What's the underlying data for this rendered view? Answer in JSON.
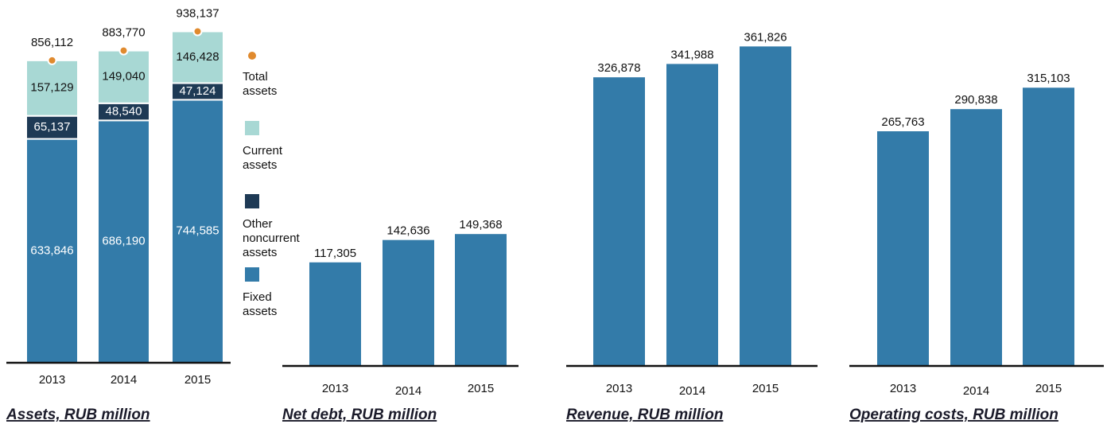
{
  "chart_data": [
    {
      "type": "stacked_bar",
      "title": "Assets, RUB million",
      "categories": [
        "2013",
        "2014",
        "2015"
      ],
      "ylim": [
        0,
        1000000
      ],
      "series": [
        {
          "name": "Fixed assets",
          "color": "#337ba9",
          "values": [
            633846,
            686190,
            744585
          ],
          "value_labels": [
            "633,846",
            "686,190",
            "744,585"
          ]
        },
        {
          "name": "Other noncurrent assets",
          "color": "#1e3a55",
          "values": [
            65137,
            48540,
            47124
          ],
          "value_labels": [
            "65,137",
            "48,540",
            "47,124"
          ]
        },
        {
          "name": "Current assets",
          "color": "#a8d8d4",
          "values": [
            157129,
            149040,
            146428
          ],
          "value_labels": [
            "157,129",
            "149,040",
            "146,428"
          ]
        },
        {
          "name": "Total assets",
          "color": "#e08a2e",
          "kind": "point",
          "values": [
            856112,
            883770,
            938137
          ],
          "value_labels": [
            "856,112",
            "883,770",
            "938,137"
          ]
        }
      ]
    },
    {
      "type": "bar",
      "title": "Net debt, RUB million",
      "categories": [
        "2013",
        "2014",
        "2015"
      ],
      "ylim": [
        0,
        400000
      ],
      "color": "#337ba9",
      "values": [
        117305,
        142636,
        149368
      ],
      "value_labels": [
        "117,305",
        "142,636",
        "149,368"
      ]
    },
    {
      "type": "bar",
      "title": "Revenue, RUB million",
      "categories": [
        "2013",
        "2014",
        "2015"
      ],
      "ylim": [
        0,
        400000
      ],
      "color": "#337ba9",
      "values": [
        326878,
        341988,
        361826
      ],
      "value_labels": [
        "326,878",
        "341,988",
        "361,826"
      ]
    },
    {
      "type": "bar",
      "title": "Operating costs, RUB million",
      "categories": [
        "2013",
        "2014",
        "2015"
      ],
      "ylim": [
        0,
        400000
      ],
      "color": "#337ba9",
      "values": [
        265763,
        290838,
        315103
      ],
      "value_labels": [
        "265,763",
        "290,838",
        "315,103"
      ]
    }
  ]
}
